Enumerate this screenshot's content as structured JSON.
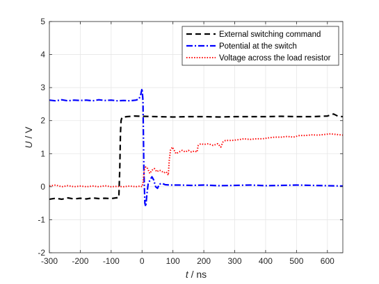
{
  "chart_data": {
    "type": "line",
    "title": "",
    "xlabel": {
      "var": "t",
      "unit": " / ns"
    },
    "ylabel": {
      "var": "U",
      "unit": " / V"
    },
    "xlim": [
      -300,
      650
    ],
    "ylim": [
      -2,
      5
    ],
    "xticks": [
      -300,
      -200,
      -100,
      0,
      100,
      200,
      300,
      400,
      500,
      600
    ],
    "yticks": [
      -2,
      -1,
      0,
      1,
      2,
      3,
      4,
      5
    ],
    "grid": true,
    "legend_position": "top-right",
    "series": [
      {
        "name": "External switching command",
        "color": "#000000",
        "dash": "dashed",
        "points": [
          [
            -300,
            -0.38
          ],
          [
            -280,
            -0.35
          ],
          [
            -260,
            -0.38
          ],
          [
            -240,
            -0.34
          ],
          [
            -220,
            -0.37
          ],
          [
            -200,
            -0.35
          ],
          [
            -180,
            -0.37
          ],
          [
            -160,
            -0.34
          ],
          [
            -140,
            -0.36
          ],
          [
            -120,
            -0.35
          ],
          [
            -100,
            -0.36
          ],
          [
            -85,
            -0.34
          ],
          [
            -75,
            -0.33
          ],
          [
            -72,
            0.6
          ],
          [
            -70,
            1.6
          ],
          [
            -68,
            2.0
          ],
          [
            -65,
            2.1
          ],
          [
            -50,
            2.12
          ],
          [
            -25,
            2.14
          ],
          [
            0,
            2.13
          ],
          [
            50,
            2.12
          ],
          [
            100,
            2.11
          ],
          [
            150,
            2.12
          ],
          [
            200,
            2.12
          ],
          [
            250,
            2.11
          ],
          [
            300,
            2.12
          ],
          [
            350,
            2.12
          ],
          [
            400,
            2.12
          ],
          [
            450,
            2.13
          ],
          [
            500,
            2.12
          ],
          [
            550,
            2.12
          ],
          [
            600,
            2.14
          ],
          [
            620,
            2.2
          ],
          [
            635,
            2.13
          ],
          [
            650,
            2.12
          ]
        ]
      },
      {
        "name": "Potential at the switch",
        "color": "#0000ff",
        "dash": "dashdot",
        "points": [
          [
            -300,
            2.62
          ],
          [
            -280,
            2.6
          ],
          [
            -260,
            2.63
          ],
          [
            -240,
            2.6
          ],
          [
            -220,
            2.62
          ],
          [
            -200,
            2.61
          ],
          [
            -180,
            2.62
          ],
          [
            -160,
            2.6
          ],
          [
            -140,
            2.63
          ],
          [
            -120,
            2.61
          ],
          [
            -100,
            2.62
          ],
          [
            -80,
            2.6
          ],
          [
            -60,
            2.61
          ],
          [
            -40,
            2.6
          ],
          [
            -20,
            2.62
          ],
          [
            -10,
            2.65
          ],
          [
            -4,
            2.8
          ],
          [
            0,
            2.97
          ],
          [
            3,
            2.6
          ],
          [
            6,
            0.5
          ],
          [
            9,
            -0.5
          ],
          [
            12,
            -0.6
          ],
          [
            16,
            -0.2
          ],
          [
            20,
            0.1
          ],
          [
            26,
            0.2
          ],
          [
            32,
            0.3
          ],
          [
            38,
            0.2
          ],
          [
            44,
            0.0
          ],
          [
            50,
            -0.05
          ],
          [
            56,
            0.08
          ],
          [
            65,
            0.1
          ],
          [
            75,
            0.06
          ],
          [
            90,
            0.05
          ],
          [
            120,
            0.05
          ],
          [
            160,
            0.04
          ],
          [
            200,
            0.05
          ],
          [
            250,
            0.03
          ],
          [
            300,
            0.04
          ],
          [
            350,
            0.05
          ],
          [
            400,
            0.03
          ],
          [
            450,
            0.04
          ],
          [
            500,
            0.05
          ],
          [
            550,
            0.04
          ],
          [
            600,
            0.03
          ],
          [
            650,
            0.02
          ]
        ]
      },
      {
        "name": "Voltage across the load resistor",
        "color": "#ff0000",
        "dash": "dotted",
        "points": [
          [
            -300,
            0.02
          ],
          [
            -280,
            0.05
          ],
          [
            -260,
            0.0
          ],
          [
            -240,
            0.03
          ],
          [
            -220,
            0.0
          ],
          [
            -200,
            0.02
          ],
          [
            -180,
            0.0
          ],
          [
            -160,
            0.02
          ],
          [
            -140,
            0.0
          ],
          [
            -120,
            0.03
          ],
          [
            -100,
            0.0
          ],
          [
            -80,
            0.01
          ],
          [
            -60,
            0.0
          ],
          [
            -40,
            0.02
          ],
          [
            -20,
            0.0
          ],
          [
            -5,
            0.02
          ],
          [
            0,
            0.0
          ],
          [
            4,
            0.15
          ],
          [
            7,
            0.5
          ],
          [
            12,
            0.6
          ],
          [
            18,
            0.55
          ],
          [
            25,
            0.4
          ],
          [
            32,
            0.5
          ],
          [
            40,
            0.55
          ],
          [
            48,
            0.45
          ],
          [
            55,
            0.5
          ],
          [
            62,
            0.48
          ],
          [
            70,
            0.42
          ],
          [
            78,
            0.45
          ],
          [
            85,
            0.35
          ],
          [
            88,
            0.8
          ],
          [
            92,
            1.1
          ],
          [
            98,
            1.2
          ],
          [
            104,
            1.1
          ],
          [
            110,
            1.0
          ],
          [
            120,
            1.05
          ],
          [
            130,
            1.1
          ],
          [
            140,
            1.05
          ],
          [
            150,
            1.1
          ],
          [
            160,
            1.05
          ],
          [
            170,
            1.08
          ],
          [
            178,
            1.05
          ],
          [
            182,
            1.25
          ],
          [
            190,
            1.3
          ],
          [
            200,
            1.28
          ],
          [
            215,
            1.3
          ],
          [
            230,
            1.25
          ],
          [
            245,
            1.3
          ],
          [
            255,
            1.2
          ],
          [
            262,
            1.35
          ],
          [
            270,
            1.4
          ],
          [
            290,
            1.4
          ],
          [
            310,
            1.42
          ],
          [
            330,
            1.45
          ],
          [
            350,
            1.43
          ],
          [
            370,
            1.45
          ],
          [
            390,
            1.45
          ],
          [
            410,
            1.48
          ],
          [
            430,
            1.5
          ],
          [
            450,
            1.5
          ],
          [
            470,
            1.52
          ],
          [
            490,
            1.5
          ],
          [
            510,
            1.55
          ],
          [
            530,
            1.55
          ],
          [
            550,
            1.57
          ],
          [
            570,
            1.56
          ],
          [
            590,
            1.58
          ],
          [
            610,
            1.6
          ],
          [
            630,
            1.58
          ],
          [
            650,
            1.56
          ]
        ]
      }
    ]
  }
}
